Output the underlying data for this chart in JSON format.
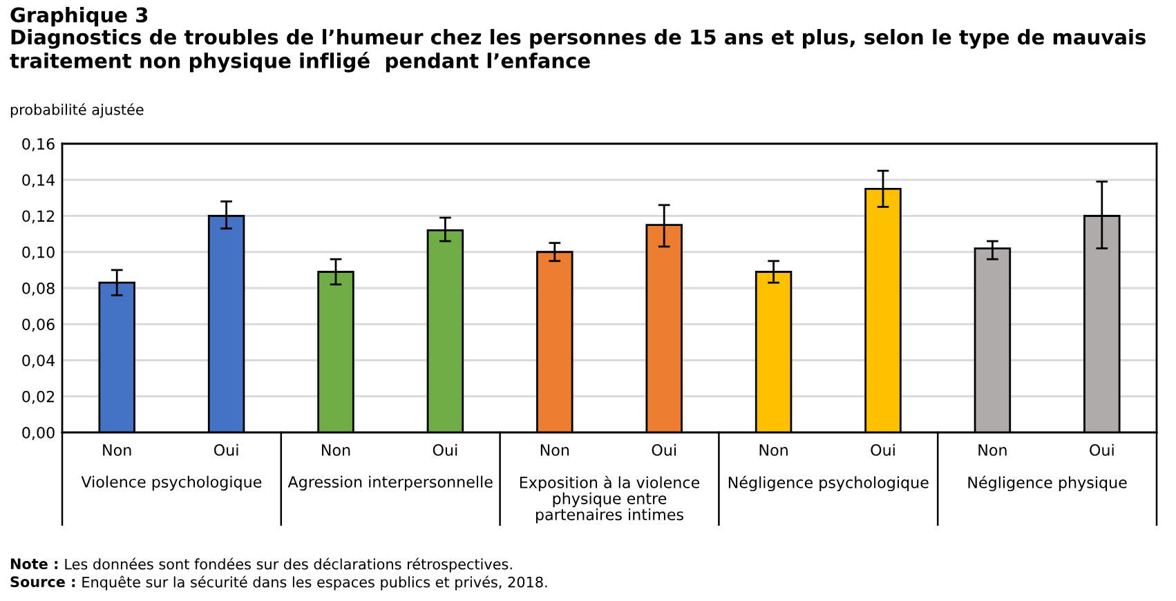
{
  "chart_data": {
    "type": "bar",
    "title": "Graphique 3",
    "subtitle": "Diagnostics de troubles de l’humeur chez les personnes de 15 ans et plus, selon le type de mauvais traitement non physique infligé  pendant l’enfance",
    "ylabel": "probabilité ajustée",
    "categories": [
      "Non",
      "Oui",
      "Non",
      "Oui",
      "Non",
      "Oui",
      "Non",
      "Oui",
      "Non",
      "Oui"
    ],
    "values": [
      0.083,
      0.12,
      0.089,
      0.112,
      0.1,
      0.115,
      0.089,
      0.135,
      0.102,
      0.12
    ],
    "colors": [
      "#4472c4",
      "#4472c4",
      "#70ad47",
      "#70ad47",
      "#ed7d31",
      "#ed7d31",
      "#ffc000",
      "#ffc000",
      "#afabab",
      "#afabab"
    ],
    "errors": [
      [
        0.076,
        0.09
      ],
      [
        0.113,
        0.128
      ],
      [
        0.082,
        0.096
      ],
      [
        0.106,
        0.119
      ],
      [
        0.095,
        0.105
      ],
      [
        0.103,
        0.126
      ],
      [
        0.083,
        0.095
      ],
      [
        0.125,
        0.145
      ],
      [
        0.096,
        0.106
      ],
      [
        0.102,
        0.139
      ]
    ],
    "ylim": [
      0,
      0.16
    ],
    "yticks": [
      {
        "value": 0,
        "label": "0,00"
      },
      {
        "value": 0.02,
        "label": "0,02"
      },
      {
        "value": 0.04,
        "label": "0,04"
      },
      {
        "value": 0.06,
        "label": "0,06"
      },
      {
        "value": 0.08,
        "label": "0,08"
      },
      {
        "value": 0.1,
        "label": "0,10"
      },
      {
        "value": 0.12,
        "label": "0,12"
      },
      {
        "value": 0.14,
        "label": "0,14"
      },
      {
        "value": 0.16,
        "label": "0,16"
      }
    ],
    "grid": "y",
    "annotations": [
      "Violence psychologique",
      "Agression interpersonnelle",
      "Exposition à la violence\nphysique entre\npartenaires intimes",
      "Négligence psychologique",
      "Négligence physique",
      "Note : Les données sont fondées sur des déclarations rétrospectives.",
      "Source : Enquête sur la sécurité dans les espaces publics et privés, 2018."
    ]
  }
}
